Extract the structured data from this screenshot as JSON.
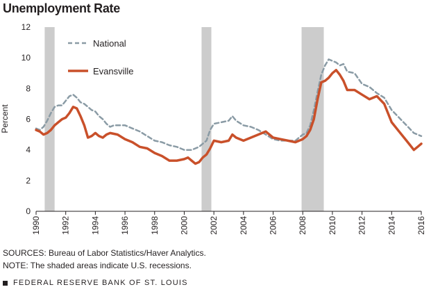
{
  "chart_data": {
    "type": "line",
    "title": "Unemployment Rate",
    "ylabel": "Percent",
    "xlabel": "",
    "xlim": [
      1990,
      2016
    ],
    "ylim": [
      0,
      12
    ],
    "yticks": [
      0,
      2,
      4,
      6,
      8,
      10,
      12
    ],
    "xticks": [
      1990,
      1992,
      1994,
      1996,
      1998,
      2000,
      2002,
      2004,
      2006,
      2008,
      2010,
      2012,
      2014,
      2016
    ],
    "grid": false,
    "legend_position": "top-left",
    "recessions": [
      [
        1990.58,
        1991.25
      ],
      [
        2001.17,
        2001.83
      ],
      [
        2007.92,
        2009.42
      ]
    ],
    "series": [
      {
        "name": "National",
        "style": "dashed",
        "color": "#8a9ba5",
        "x": [
          1990.0,
          1990.25,
          1990.5,
          1990.75,
          1991.0,
          1991.25,
          1991.5,
          1991.75,
          1992.0,
          1992.25,
          1992.5,
          1992.75,
          1993.0,
          1993.25,
          1993.5,
          1993.75,
          1994.0,
          1994.25,
          1994.5,
          1994.75,
          1995.0,
          1995.25,
          1995.5,
          1995.75,
          1996.0,
          1996.5,
          1997.0,
          1997.5,
          1998.0,
          1998.5,
          1999.0,
          1999.5,
          2000.0,
          2000.5,
          2001.0,
          2001.25,
          2001.5,
          2001.75,
          2002.0,
          2002.5,
          2003.0,
          2003.25,
          2003.5,
          2004.0,
          2004.5,
          2005.0,
          2005.5,
          2006.0,
          2006.5,
          2007.0,
          2007.5,
          2008.0,
          2008.25,
          2008.5,
          2008.75,
          2009.0,
          2009.25,
          2009.5,
          2009.75,
          2010.0,
          2010.25,
          2010.5,
          2010.75,
          2011.0,
          2011.5,
          2012.0,
          2012.5,
          2013.0,
          2013.5,
          2014.0,
          2014.5,
          2015.0,
          2015.5,
          2016.0
        ],
        "values": [
          5.4,
          5.3,
          5.5,
          5.9,
          6.4,
          6.8,
          6.9,
          6.9,
          7.2,
          7.5,
          7.6,
          7.4,
          7.1,
          7.0,
          6.8,
          6.6,
          6.5,
          6.2,
          6.0,
          5.7,
          5.5,
          5.6,
          5.6,
          5.6,
          5.6,
          5.4,
          5.2,
          4.9,
          4.6,
          4.5,
          4.3,
          4.2,
          4.0,
          4.0,
          4.2,
          4.4,
          4.6,
          5.3,
          5.7,
          5.8,
          5.9,
          6.2,
          5.9,
          5.6,
          5.5,
          5.3,
          5.0,
          4.7,
          4.6,
          4.6,
          4.6,
          5.0,
          5.1,
          5.6,
          6.6,
          7.8,
          8.9,
          9.5,
          9.9,
          9.8,
          9.7,
          9.5,
          9.6,
          9.1,
          9.0,
          8.3,
          8.1,
          7.7,
          7.4,
          6.6,
          6.1,
          5.6,
          5.1,
          4.9
        ]
      },
      {
        "name": "Evansville",
        "style": "solid",
        "color": "#c9502a",
        "x": [
          1990.0,
          1990.25,
          1990.5,
          1990.75,
          1991.0,
          1991.25,
          1991.5,
          1991.75,
          1992.0,
          1992.25,
          1992.5,
          1992.75,
          1993.0,
          1993.25,
          1993.5,
          1993.75,
          1994.0,
          1994.25,
          1994.5,
          1994.75,
          1995.0,
          1995.5,
          1996.0,
          1996.5,
          1997.0,
          1997.5,
          1998.0,
          1998.5,
          1999.0,
          1999.5,
          2000.0,
          2000.25,
          2000.5,
          2000.75,
          2001.0,
          2001.25,
          2001.5,
          2001.75,
          2002.0,
          2002.5,
          2003.0,
          2003.25,
          2003.5,
          2004.0,
          2004.5,
          2005.0,
          2005.5,
          2006.0,
          2006.5,
          2007.0,
          2007.5,
          2008.0,
          2008.25,
          2008.5,
          2008.75,
          2009.0,
          2009.25,
          2009.5,
          2009.75,
          2010.0,
          2010.25,
          2010.5,
          2010.75,
          2011.0,
          2011.5,
          2012.0,
          2012.5,
          2013.0,
          2013.5,
          2014.0,
          2014.5,
          2015.0,
          2015.25,
          2015.5,
          2015.75,
          2016.0
        ],
        "values": [
          5.3,
          5.2,
          5.0,
          5.1,
          5.3,
          5.6,
          5.8,
          6.0,
          6.1,
          6.4,
          6.8,
          6.7,
          6.2,
          5.6,
          4.8,
          4.9,
          5.1,
          4.9,
          4.8,
          5.0,
          5.1,
          5.0,
          4.7,
          4.5,
          4.2,
          4.1,
          3.8,
          3.6,
          3.3,
          3.3,
          3.4,
          3.5,
          3.3,
          3.1,
          3.2,
          3.5,
          3.7,
          4.1,
          4.6,
          4.5,
          4.6,
          5.0,
          4.8,
          4.6,
          4.8,
          5.0,
          5.2,
          4.8,
          4.7,
          4.6,
          4.5,
          4.7,
          4.9,
          5.3,
          6.0,
          7.3,
          8.4,
          8.5,
          8.7,
          9.0,
          9.2,
          8.9,
          8.5,
          7.9,
          7.9,
          7.6,
          7.3,
          7.5,
          7.0,
          5.8,
          5.2,
          4.6,
          4.3,
          4.0,
          4.2,
          4.4
        ]
      }
    ]
  },
  "notes": {
    "sources": "SOURCES: Bureau of Labor Statistics/Haver Analytics.",
    "shaded": "NOTE: The shaded areas indicate U.S. recessions."
  },
  "footer": {
    "text": "FEDERAL RESERVE BANK OF ST. LOUIS"
  }
}
